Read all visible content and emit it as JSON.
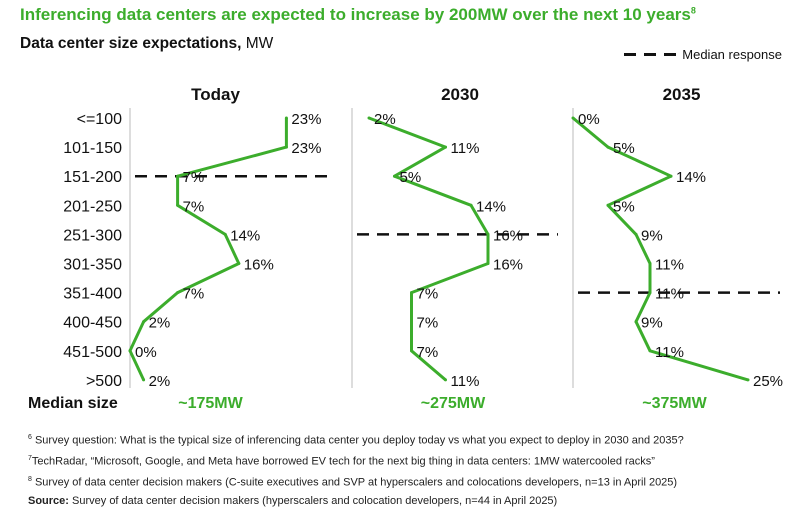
{
  "header": {
    "title": "Inferencing data centers are expected to increase by 200MW over the next 10 years",
    "title_footnote": "8",
    "subtitle_bold": "Data center size expectations,",
    "subtitle_unit": " MW",
    "legend_label": "Median response"
  },
  "colors": {
    "line": "#3cad2c",
    "title": "#3cad2c",
    "divider": "#bbbbbb",
    "median": "#111111"
  },
  "chart_data": {
    "type": "line",
    "orientation": "horizontal-profile",
    "categories": [
      "<=100",
      "101-150",
      "151-200",
      "201-250",
      "251-300",
      "301-350",
      "351-400",
      "400-450",
      "451-500",
      ">500"
    ],
    "series": [
      {
        "name": "Today",
        "values": [
          23,
          23,
          7,
          7,
          14,
          16,
          7,
          2,
          0,
          2
        ],
        "median_category": "151-200",
        "median_label": "~175MW"
      },
      {
        "name": "2030",
        "values": [
          2,
          11,
          5,
          14,
          16,
          16,
          7,
          7,
          7,
          11
        ],
        "median_category": "251-300",
        "median_label": "~275MW"
      },
      {
        "name": "2035",
        "values": [
          0,
          5,
          14,
          5,
          9,
          11,
          11,
          9,
          11,
          25
        ],
        "median_category": "351-400",
        "median_label": "~375MW"
      }
    ],
    "value_labels": [
      [
        "23%",
        "23%",
        "7%",
        "7%",
        "14%",
        "16%",
        "7%",
        "2%",
        "0%",
        "2%"
      ],
      [
        "2%",
        "11%",
        "5%",
        "14%",
        "16%",
        "16%",
        "7%",
        "7%",
        "7%",
        "11%"
      ],
      [
        "0%",
        "5%",
        "14%",
        "5%",
        "9%",
        "11%",
        "11%",
        "9%",
        "11%",
        "25%"
      ]
    ],
    "median_row_label": "Median size",
    "unit": "%"
  },
  "footnotes": [
    {
      "num": "6",
      "text": " Survey question: What is the typical size of inferencing data center you deploy today vs what you expect to deploy in 2030 and 2035?"
    },
    {
      "num": "7",
      "text": "TechRadar, “Microsoft, Google, and Meta have borrowed EV tech for the next big thing in data centers: 1MW watercooled racks”"
    },
    {
      "num": "8",
      "text": " Survey of data center decision makers (C-suite executives and SVP at hyperscalers and colocations developers, n=13 in April 2025)"
    }
  ],
  "source": {
    "label": "Source:",
    "text": " Survey of data center decision makers (hyperscalers and colocation developers, n=44 in April 2025)"
  }
}
